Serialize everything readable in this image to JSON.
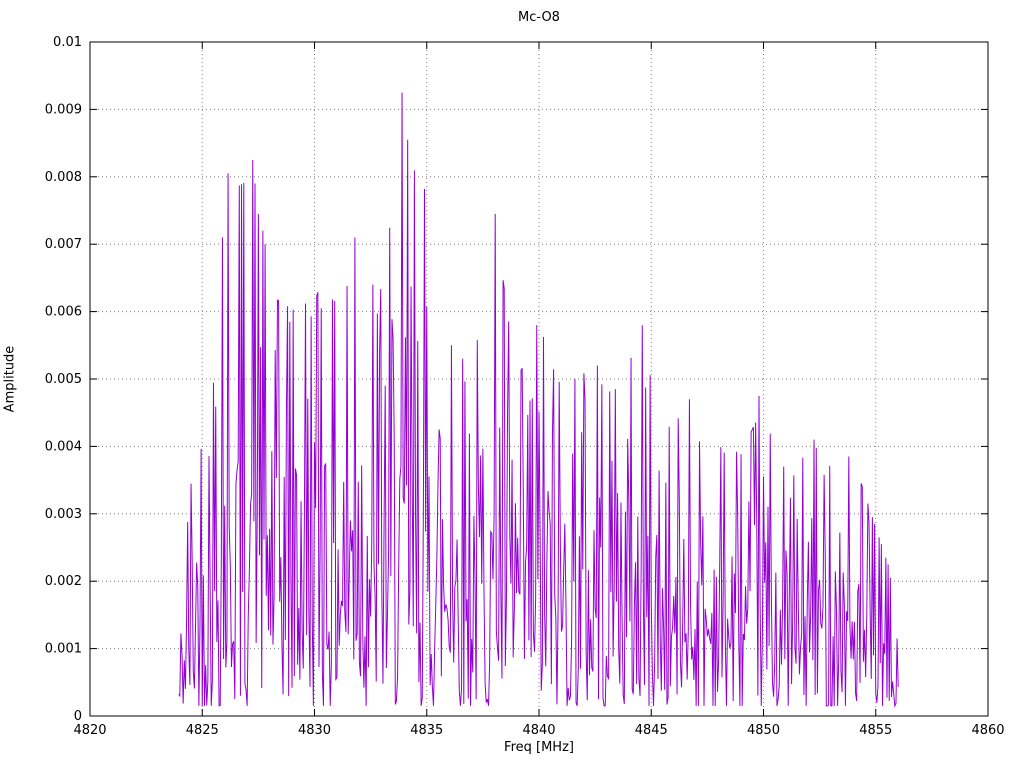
{
  "chart_data": {
    "type": "line",
    "title": "Mc-O8",
    "xlabel": "Freq [MHz]",
    "ylabel": "Amplitude",
    "xlim": [
      4820,
      4860
    ],
    "ylim": [
      0,
      0.01
    ],
    "x_tick_values": [
      4820,
      4825,
      4830,
      4835,
      4840,
      4845,
      4850,
      4855,
      4860
    ],
    "x_tick_labels": [
      "4820",
      "4825",
      "4830",
      "4835",
      "4840",
      "4845",
      "4850",
      "4855",
      "4860"
    ],
    "y_tick_values": [
      0,
      0.001,
      0.002,
      0.003,
      0.004,
      0.005,
      0.006,
      0.007,
      0.008,
      0.009,
      0.01
    ],
    "y_tick_labels": [
      "0",
      "0.001",
      "0.002",
      "0.003",
      "0.004",
      "0.005",
      "0.006",
      "0.007",
      "0.008",
      "0.009",
      "0.01"
    ],
    "grid_style": "dotted",
    "grid_color": "#808080",
    "line_color": "#9400d3",
    "axis_color": "#000000",
    "background_color": "#ffffff",
    "signal_range": [
      4823.95,
      4856.0
    ],
    "sample_step": 0.05,
    "seed": 42,
    "noise_model": "exponential",
    "envelope": [
      [
        4823.95,
        0.0004,
        0.0012
      ],
      [
        4824.3,
        0.0016,
        0.0032
      ],
      [
        4825.0,
        0.0026,
        0.005
      ],
      [
        4825.6,
        0.0032,
        0.006
      ],
      [
        4826.3,
        0.0036,
        0.0078
      ],
      [
        4827.3,
        0.0038,
        0.008
      ],
      [
        4828.2,
        0.0034,
        0.0062
      ],
      [
        4829.2,
        0.0034,
        0.006
      ],
      [
        4830.2,
        0.0035,
        0.0063
      ],
      [
        4831.2,
        0.0034,
        0.0061
      ],
      [
        4832.0,
        0.0036,
        0.007
      ],
      [
        4833.0,
        0.0034,
        0.0063
      ],
      [
        4834.0,
        0.0036,
        0.009
      ],
      [
        4834.9,
        0.0034,
        0.0077
      ],
      [
        4836.0,
        0.0029,
        0.0056
      ],
      [
        4837.0,
        0.0028,
        0.0051
      ],
      [
        4838.1,
        0.0028,
        0.0072
      ],
      [
        4839.0,
        0.0026,
        0.005
      ],
      [
        4840.1,
        0.0026,
        0.0057
      ],
      [
        4841.0,
        0.0026,
        0.005
      ],
      [
        4842.2,
        0.0025,
        0.0051
      ],
      [
        4843.2,
        0.0024,
        0.0048
      ],
      [
        4844.6,
        0.0023,
        0.0056
      ],
      [
        4845.5,
        0.0021,
        0.0042
      ],
      [
        4846.8,
        0.0021,
        0.0046
      ],
      [
        4848.0,
        0.002,
        0.004
      ],
      [
        4849.0,
        0.0019,
        0.0039
      ],
      [
        4850.0,
        0.002,
        0.0046
      ],
      [
        4851.0,
        0.0018,
        0.0036
      ],
      [
        4852.3,
        0.0019,
        0.004
      ],
      [
        4853.2,
        0.0018,
        0.0036
      ],
      [
        4854.0,
        0.0018,
        0.0038
      ],
      [
        4855.0,
        0.0014,
        0.0028
      ],
      [
        4855.6,
        0.001,
        0.0022
      ],
      [
        4856.0,
        0.0005,
        0.001
      ]
    ],
    "peaks": [
      [
        4825.9,
        0.0071
      ],
      [
        4826.15,
        0.00805
      ],
      [
        4827.25,
        0.00825
      ],
      [
        4827.5,
        0.00745
      ],
      [
        4828.9,
        0.00585
      ],
      [
        4830.3,
        0.00605
      ],
      [
        4831.8,
        0.0071
      ],
      [
        4832.6,
        0.0064
      ],
      [
        4833.9,
        0.00925
      ],
      [
        4834.15,
        0.00855
      ],
      [
        4834.9,
        0.00782
      ],
      [
        4836.1,
        0.0055
      ],
      [
        4838.05,
        0.00745
      ],
      [
        4839.9,
        0.0058
      ],
      [
        4841.6,
        0.005
      ],
      [
        4842.6,
        0.0052
      ],
      [
        4843.4,
        0.00485
      ],
      [
        4844.6,
        0.0058
      ],
      [
        4846.7,
        0.0047
      ],
      [
        4849.8,
        0.00475
      ],
      [
        4852.25,
        0.0041
      ],
      [
        4853.8,
        0.00385
      ]
    ]
  }
}
